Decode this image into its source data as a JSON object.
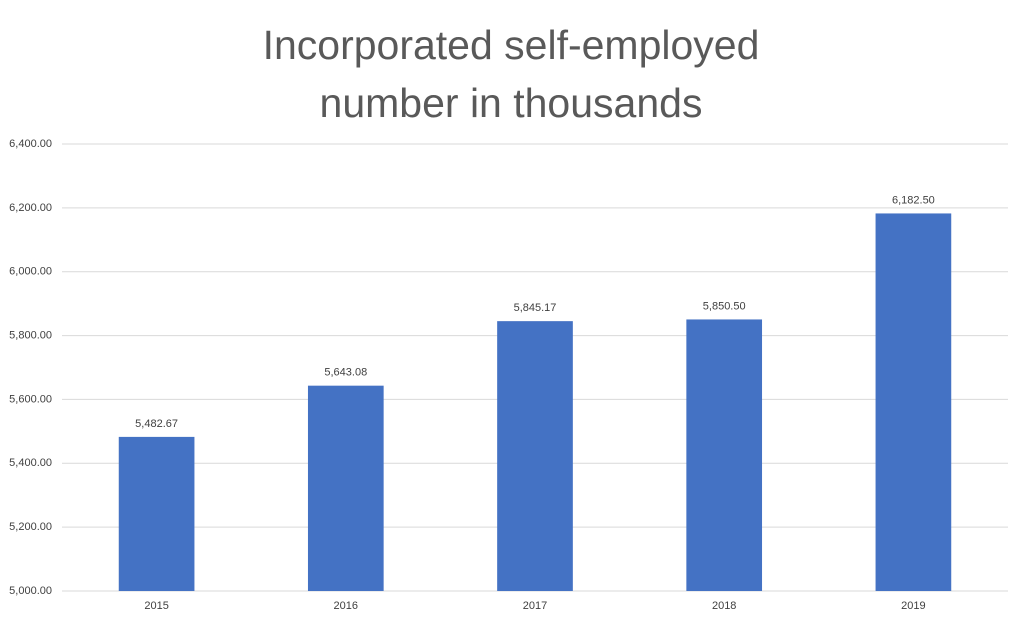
{
  "chart_data": {
    "type": "bar",
    "title": "Incorporated self-employed number in thousands",
    "categories": [
      "2015",
      "2016",
      "2017",
      "2018",
      "2019"
    ],
    "values": [
      5482.67,
      5643.08,
      5845.17,
      5850.5,
      6182.5
    ],
    "value_labels": [
      "5,482.67",
      "5,643.08",
      "5,845.17",
      "5,850.50",
      "6,182.50"
    ],
    "color": "#4472c4",
    "ylim": [
      5000,
      6400
    ],
    "yticks": [
      {
        "value": 5000,
        "label": "5,000.00"
      },
      {
        "value": 5200,
        "label": "5,200.00"
      },
      {
        "value": 5400,
        "label": "5,400.00"
      },
      {
        "value": 5600,
        "label": "5,600.00"
      },
      {
        "value": 5800,
        "label": "5,800.00"
      },
      {
        "value": 6000,
        "label": "6,000.00"
      },
      {
        "value": 6200,
        "label": "6,200.00"
      },
      {
        "value": 6400,
        "label": "6,400.00"
      }
    ],
    "grid": true
  }
}
